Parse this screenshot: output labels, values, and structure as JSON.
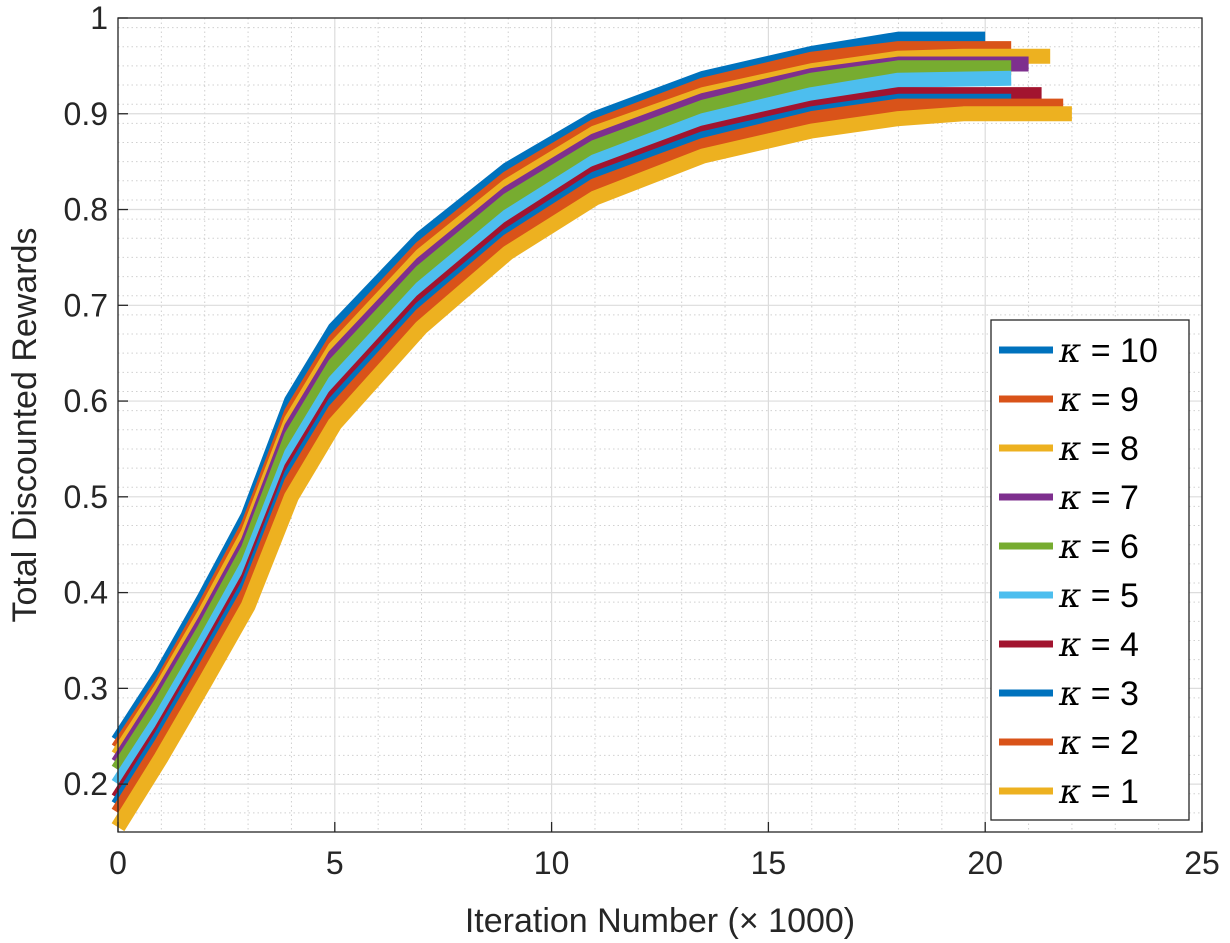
{
  "chart_data": {
    "type": "line",
    "title": "",
    "xlabel": "Iteration Number (× 1000)",
    "ylabel": "Total Discounted Rewards",
    "xlim": [
      0,
      25
    ],
    "ylim": [
      0.15,
      1.0
    ],
    "xticks": [
      0,
      5,
      10,
      15,
      20,
      25
    ],
    "xtick_labels": [
      "0",
      "5",
      "10",
      "15",
      "20",
      "25"
    ],
    "yticks": [
      0.2,
      0.3,
      0.4,
      0.5,
      0.6,
      0.7,
      0.8,
      0.9,
      1.0
    ],
    "ytick_labels": [
      "0.2",
      "0.3",
      "0.4",
      "0.5",
      "0.6",
      "0.7",
      "0.8",
      "0.9",
      "1"
    ],
    "grid": true,
    "minor_grid": true,
    "legend_position": "bottom-right",
    "series": [
      {
        "name": "κ = 10",
        "symbol": "κ",
        "label": "= 10",
        "color": "#0072BD",
        "points": [
          [
            0,
            0.245
          ],
          [
            1,
            0.315
          ],
          [
            2,
            0.395
          ],
          [
            3,
            0.48
          ],
          [
            4,
            0.6
          ],
          [
            5,
            0.675
          ],
          [
            7,
            0.77
          ],
          [
            9,
            0.842
          ],
          [
            11,
            0.895
          ],
          [
            13.5,
            0.937
          ],
          [
            16,
            0.963
          ],
          [
            18,
            0.978
          ],
          [
            20,
            0.978
          ]
        ]
      },
      {
        "name": "κ = 9",
        "symbol": "κ",
        "label": "= 9",
        "color": "#D95319",
        "points": [
          [
            0,
            0.237
          ],
          [
            1,
            0.305
          ],
          [
            2,
            0.385
          ],
          [
            3,
            0.47
          ],
          [
            4,
            0.588
          ],
          [
            5,
            0.663
          ],
          [
            7,
            0.76
          ],
          [
            9,
            0.833
          ],
          [
            11,
            0.887
          ],
          [
            13.5,
            0.93
          ],
          [
            16,
            0.957
          ],
          [
            18,
            0.968
          ],
          [
            20.6,
            0.968
          ]
        ]
      },
      {
        "name": "κ = 8",
        "symbol": "κ",
        "label": "= 8",
        "color": "#EDB120",
        "points": [
          [
            0,
            0.23
          ],
          [
            1,
            0.3
          ],
          [
            2,
            0.378
          ],
          [
            3,
            0.462
          ],
          [
            4,
            0.58
          ],
          [
            5,
            0.655
          ],
          [
            7,
            0.752
          ],
          [
            9,
            0.825
          ],
          [
            11,
            0.88
          ],
          [
            13.5,
            0.92
          ],
          [
            16,
            0.945
          ],
          [
            18,
            0.958
          ],
          [
            19.5,
            0.96
          ],
          [
            21.5,
            0.96
          ]
        ]
      },
      {
        "name": "κ = 7",
        "symbol": "κ",
        "label": "= 7",
        "color": "#7E2F8E",
        "points": [
          [
            0,
            0.222
          ],
          [
            1,
            0.293
          ],
          [
            2,
            0.37
          ],
          [
            3,
            0.453
          ],
          [
            4,
            0.572
          ],
          [
            5,
            0.647
          ],
          [
            7,
            0.743
          ],
          [
            9,
            0.817
          ],
          [
            11,
            0.872
          ],
          [
            13.5,
            0.914
          ],
          [
            16,
            0.94
          ],
          [
            18,
            0.952
          ],
          [
            21,
            0.952
          ]
        ]
      },
      {
        "name": "κ = 6",
        "symbol": "κ",
        "label": "= 6",
        "color": "#77AC30",
        "points": [
          [
            0,
            0.215
          ],
          [
            1,
            0.285
          ],
          [
            2,
            0.362
          ],
          [
            3,
            0.445
          ],
          [
            4,
            0.563
          ],
          [
            5,
            0.638
          ],
          [
            7,
            0.735
          ],
          [
            9,
            0.81
          ],
          [
            11,
            0.865
          ],
          [
            13.5,
            0.907
          ],
          [
            16,
            0.935
          ],
          [
            18,
            0.948
          ],
          [
            20.6,
            0.948
          ]
        ]
      },
      {
        "name": "κ = 5",
        "symbol": "κ",
        "label": "= 5",
        "color": "#4DBEEE",
        "points": [
          [
            0,
            0.2
          ],
          [
            1,
            0.27
          ],
          [
            2,
            0.348
          ],
          [
            3,
            0.43
          ],
          [
            4,
            0.545
          ],
          [
            5,
            0.62
          ],
          [
            7,
            0.718
          ],
          [
            9,
            0.793
          ],
          [
            11,
            0.85
          ],
          [
            13.5,
            0.893
          ],
          [
            16,
            0.92
          ],
          [
            18,
            0.935
          ],
          [
            20.6,
            0.937
          ]
        ]
      },
      {
        "name": "κ = 4",
        "symbol": "κ",
        "label": "= 4",
        "color": "#A2142F",
        "points": [
          [
            0,
            0.185
          ],
          [
            1,
            0.256
          ],
          [
            2,
            0.334
          ],
          [
            3,
            0.415
          ],
          [
            4,
            0.53
          ],
          [
            5,
            0.605
          ],
          [
            7,
            0.704
          ],
          [
            9,
            0.78
          ],
          [
            11,
            0.838
          ],
          [
            13.5,
            0.88
          ],
          [
            16,
            0.906
          ],
          [
            18,
            0.92
          ],
          [
            21.3,
            0.92
          ]
        ]
      },
      {
        "name": "κ = 3",
        "symbol": "κ",
        "label": "= 3",
        "color": "#0072BD",
        "points": [
          [
            0,
            0.178
          ],
          [
            1,
            0.25
          ],
          [
            2,
            0.328
          ],
          [
            3,
            0.408
          ],
          [
            4,
            0.523
          ],
          [
            5,
            0.598
          ],
          [
            7,
            0.697
          ],
          [
            9,
            0.773
          ],
          [
            11,
            0.832
          ],
          [
            13.5,
            0.874
          ],
          [
            16,
            0.9
          ],
          [
            18,
            0.913
          ],
          [
            20.6,
            0.913
          ]
        ]
      },
      {
        "name": "κ = 2",
        "symbol": "κ",
        "label": "= 2",
        "color": "#D95319",
        "points": [
          [
            0,
            0.17
          ],
          [
            1,
            0.242
          ],
          [
            2,
            0.32
          ],
          [
            3,
            0.4
          ],
          [
            4,
            0.515
          ],
          [
            5,
            0.59
          ],
          [
            7,
            0.69
          ],
          [
            9,
            0.767
          ],
          [
            11,
            0.825
          ],
          [
            13.5,
            0.867
          ],
          [
            16,
            0.895
          ],
          [
            18,
            0.908
          ],
          [
            21.8,
            0.908
          ]
        ]
      },
      {
        "name": "κ = 1",
        "symbol": "κ",
        "label": "= 1",
        "color": "#EDB120",
        "points": [
          [
            0,
            0.155
          ],
          [
            1,
            0.228
          ],
          [
            2,
            0.306
          ],
          [
            3,
            0.386
          ],
          [
            4,
            0.5
          ],
          [
            5,
            0.576
          ],
          [
            7,
            0.677
          ],
          [
            9,
            0.755
          ],
          [
            11,
            0.812
          ],
          [
            13.5,
            0.856
          ],
          [
            16,
            0.882
          ],
          [
            18,
            0.895
          ],
          [
            19.5,
            0.9
          ],
          [
            22,
            0.9
          ]
        ]
      }
    ]
  }
}
